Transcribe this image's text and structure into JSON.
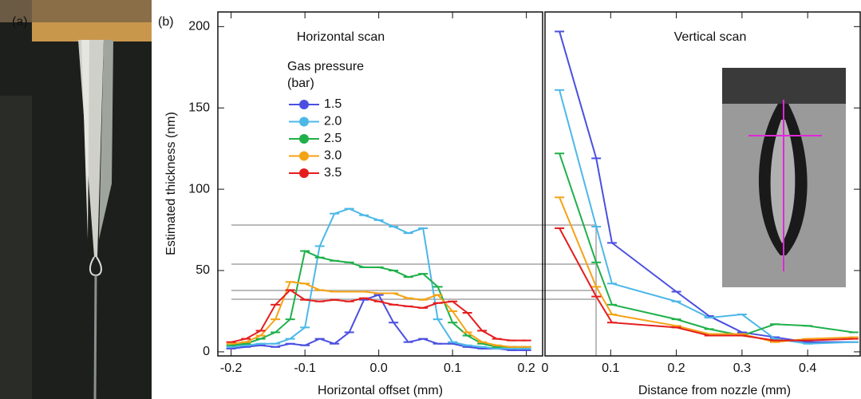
{
  "panel_labels": [
    "(a)",
    "(b)"
  ],
  "chart_data": [
    {
      "type": "line",
      "title": "Horizontal scan",
      "x_label": "Horizontal offset (mm)",
      "y_label": "Estimated thickness (nm)",
      "legend_title": [
        "Gas pressure",
        "(bar)"
      ],
      "x": [
        -0.2,
        -0.18,
        -0.16,
        -0.14,
        -0.12,
        -0.1,
        -0.08,
        -0.06,
        -0.04,
        -0.02,
        0,
        0.02,
        0.04,
        0.06,
        0.08,
        0.1,
        0.12,
        0.14,
        0.16,
        0.18,
        0.2
      ],
      "xlim": [
        -0.218,
        0.222
      ],
      "xticks": [
        -0.2,
        -0.1,
        {
          "value": 0,
          "label": "0.0"
        },
        0.1,
        0.2
      ],
      "ylim": [
        -2.5,
        209
      ],
      "yticks": [
        0,
        50,
        100,
        150,
        200
      ],
      "series": [
        {
          "name": "1.5",
          "color": "#4b4fe0",
          "values": [
            2,
            3,
            4,
            3,
            5,
            4,
            8,
            5,
            12,
            32,
            35,
            18,
            6,
            8,
            5,
            5,
            3,
            2,
            2,
            1,
            1
          ]
        },
        {
          "name": "2.0",
          "color": "#4cb8e8",
          "values": [
            3,
            4,
            5,
            5,
            8,
            15,
            65,
            85,
            88,
            84,
            81,
            77,
            73,
            76,
            20,
            6,
            4,
            3,
            2,
            2,
            2
          ]
        },
        {
          "name": "2.5",
          "color": "#1fb04a",
          "values": [
            4,
            5,
            8,
            12,
            20,
            62,
            58,
            56,
            55,
            52,
            52,
            50,
            46,
            48,
            40,
            18,
            10,
            5,
            3,
            3,
            3
          ]
        },
        {
          "name": "3.0",
          "color": "#f5a316",
          "values": [
            5,
            6,
            10,
            20,
            43,
            42,
            38,
            37,
            37,
            37,
            36,
            36,
            33,
            32,
            35,
            25,
            12,
            6,
            4,
            3,
            3
          ]
        },
        {
          "name": "3.5",
          "color": "#e41e1e",
          "values": [
            6,
            8,
            13,
            29,
            38,
            32,
            31,
            32,
            31,
            33,
            31,
            29,
            28,
            27,
            30,
            31,
            24,
            13,
            8,
            7,
            7
          ]
        }
      ]
    },
    {
      "type": "line",
      "title": "Vertical scan",
      "x_label": "Distance from nozzle (mm)",
      "x": [
        0.022,
        0.078,
        0.102,
        0.2,
        0.25,
        0.3,
        0.35,
        0.4,
        0.47
      ],
      "xlim": [
        0,
        0.48
      ],
      "xticks": [
        0,
        0.1,
        0.2,
        0.3,
        0.4
      ],
      "ylim": [
        -2.5,
        209
      ],
      "yticks": [
        0,
        50,
        100,
        150,
        200
      ],
      "series": [
        {
          "color": "#4b4fe0",
          "values": [
            197,
            119,
            67,
            37,
            22,
            12,
            9,
            6,
            6
          ]
        },
        {
          "color": "#4cb8e8",
          "values": [
            161,
            77,
            42,
            31,
            21,
            23,
            8,
            5,
            6
          ]
        },
        {
          "color": "#1fb04a",
          "values": [
            122,
            55,
            29,
            20,
            14,
            10,
            17,
            16,
            12
          ]
        },
        {
          "color": "#f5a316",
          "values": [
            95,
            40,
            23,
            16,
            11,
            11,
            6,
            8,
            9
          ]
        },
        {
          "color": "#e41e1e",
          "values": [
            76,
            34,
            18,
            15,
            10,
            10,
            7,
            7,
            8
          ]
        }
      ]
    }
  ]
}
